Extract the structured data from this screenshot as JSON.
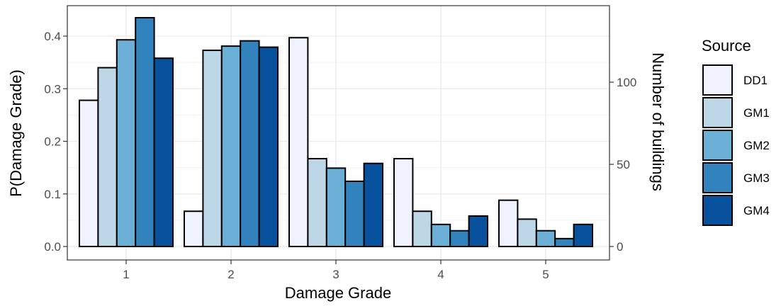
{
  "chart_data": {
    "type": "bar",
    "xlabel": "Damage Grade",
    "ylabel": "P(Damage Grade)",
    "y2label": "Number of buildings",
    "categories": [
      "1",
      "2",
      "3",
      "4",
      "5"
    ],
    "ylim": [
      0,
      0.44
    ],
    "y_ticks": [
      "0.0",
      "0.1",
      "0.2",
      "0.3",
      "0.4"
    ],
    "y2_ticks": [
      "0",
      "50",
      "100"
    ],
    "legend_title": "Source",
    "legend_position": "right",
    "grid": true,
    "series": [
      {
        "name": "DD1",
        "color": "#eff3ff",
        "values": [
          0.278,
          0.067,
          0.397,
          0.167,
          0.088
        ]
      },
      {
        "name": "GM1",
        "color": "#bdd7e7",
        "values": [
          0.34,
          0.373,
          0.167,
          0.067,
          0.052
        ]
      },
      {
        "name": "GM2",
        "color": "#6baed6",
        "values": [
          0.393,
          0.381,
          0.149,
          0.042,
          0.03
        ]
      },
      {
        "name": "GM3",
        "color": "#3182bd",
        "values": [
          0.435,
          0.391,
          0.124,
          0.03,
          0.015
        ]
      },
      {
        "name": "GM4",
        "color": "#08519c",
        "values": [
          0.358,
          0.379,
          0.158,
          0.058,
          0.042
        ]
      }
    ]
  }
}
